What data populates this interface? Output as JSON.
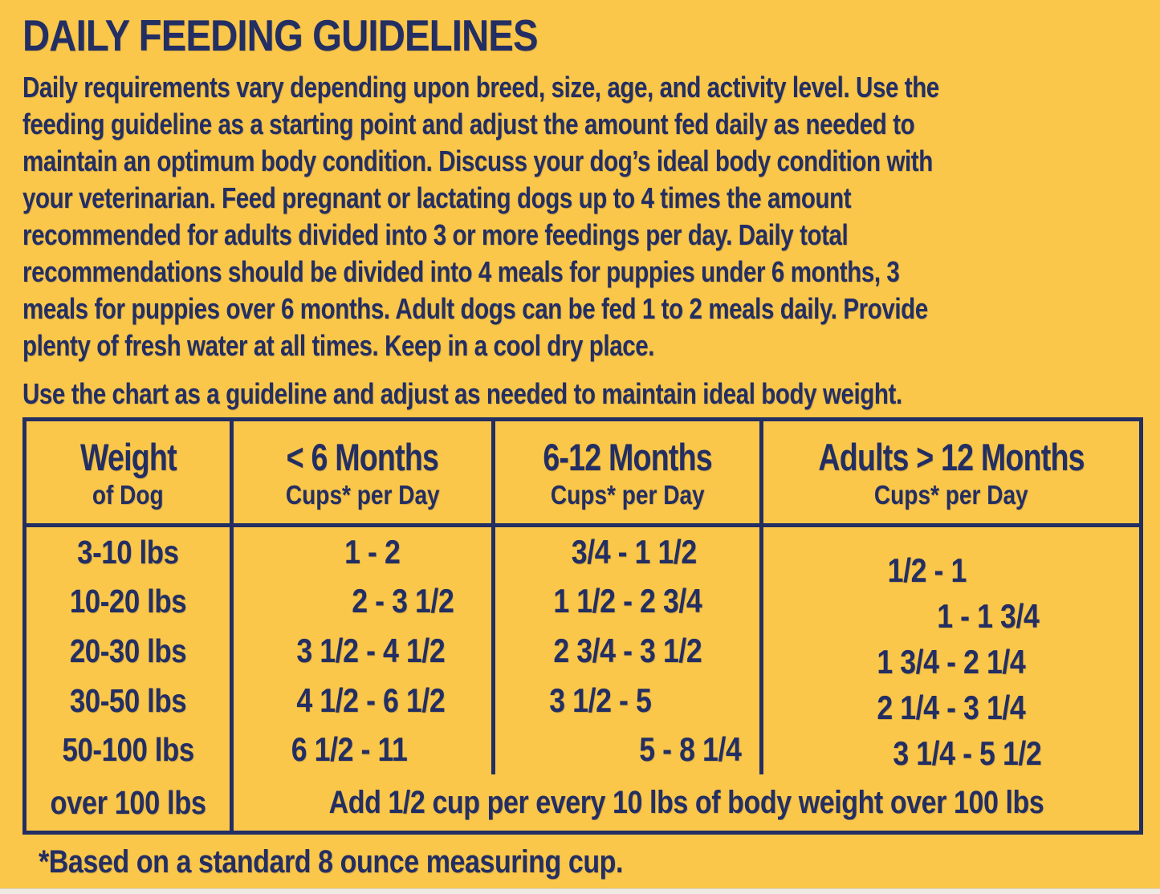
{
  "colors": {
    "background": "#FAC74A",
    "ink": "#232E63",
    "edge_strip": "#EFEAE3"
  },
  "title": "DAILY FEEDING GUIDELINES",
  "intro": {
    "lines": [
      "Daily requirements vary depending upon breed, size, age, and activity level. Use the",
      "feeding guideline as a starting point and adjust the amount fed daily as needed to",
      "maintain an optimum body condition. Discuss your dog’s ideal body condition with",
      "your veterinarian. Feed pregnant or lactating dogs up to 4 times the amount",
      "recommended for adults divided into 3 or more feedings per day. Daily total",
      "recommendations should be divided into 4 meals for puppies under 6 months, 3",
      "meals for puppies over 6 months. Adult dogs can be fed 1 to 2 meals daily. Provide",
      "plenty of fresh water at all times. Keep in a cool dry place."
    ]
  },
  "chart_note": "Use the chart as a guideline and adjust as needed to maintain ideal body weight.",
  "table": {
    "headers": [
      {
        "title": "Weight",
        "subtitle": "of Dog"
      },
      {
        "title": "< 6 Months",
        "subtitle": "Cups* per Day"
      },
      {
        "title": "6-12 Months",
        "subtitle": "Cups* per Day"
      },
      {
        "title": "Adults > 12 Months",
        "subtitle": "Cups* per Day"
      }
    ],
    "rows": [
      {
        "weight": "3-10 lbs",
        "under6": "1 - 2",
        "m6to12": "3/4 - 1 1/2",
        "adults": "1/2 - 1"
      },
      {
        "weight": "10-20 lbs",
        "under6": "2 - 3 1/2",
        "m6to12": "1 1/2 - 2 3/4",
        "adults": "1 - 1 3/4"
      },
      {
        "weight": "20-30 lbs",
        "under6": "3 1/2 - 4 1/2",
        "m6to12": "2 3/4 - 3 1/2",
        "adults": "1 3/4 - 2 1/4"
      },
      {
        "weight": "30-50 lbs",
        "under6": "4 1/2 - 6 1/2",
        "m6to12": "3 1/2 - 5",
        "adults": "2 1/4 - 3 1/4"
      },
      {
        "weight": "50-100 lbs",
        "under6": "6 1/2 - 11",
        "m6to12": "5 - 8 1/4",
        "adults": "3 1/4 - 5 1/2"
      }
    ],
    "over_row": {
      "weight": "over 100 lbs",
      "note": "Add 1/2 cup per every 10 lbs of body weight over 100 lbs"
    }
  },
  "footnote": "*Based on a standard 8 ounce measuring cup."
}
